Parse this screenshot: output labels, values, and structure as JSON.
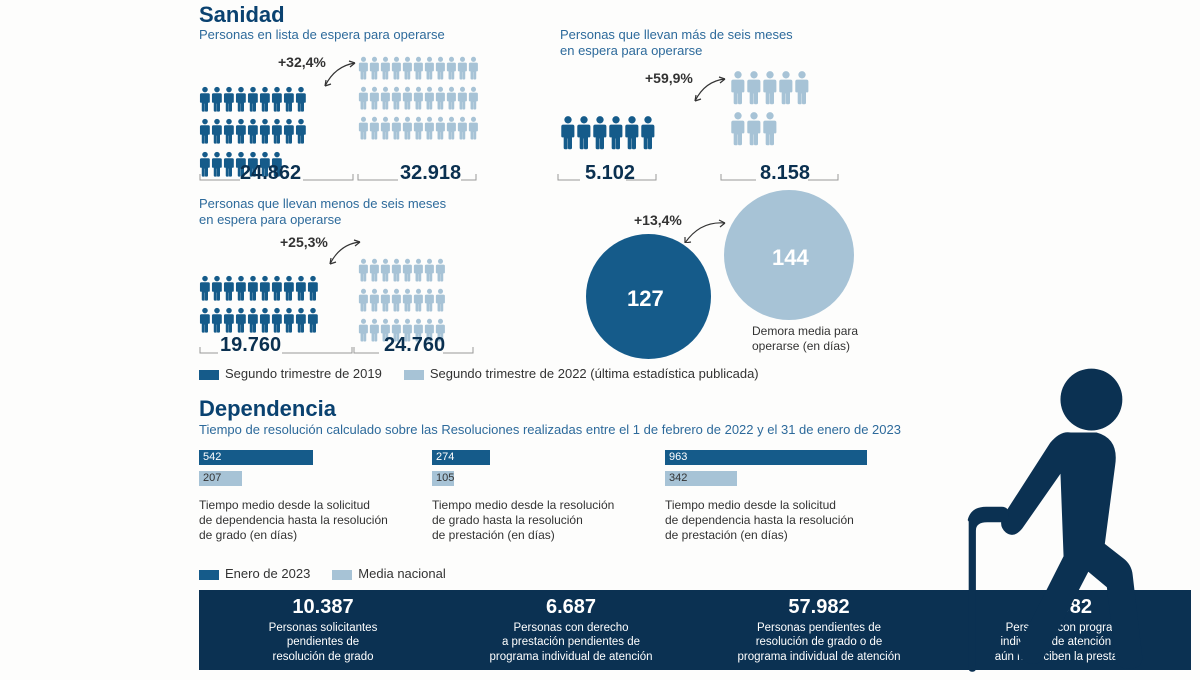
{
  "colors": {
    "dark": "#155b8a",
    "light": "#a7c3d6",
    "navy": "#0b3152",
    "title": "#0a4270",
    "text": "#333333"
  },
  "sanidad": {
    "title": "Sanidad",
    "blocks": {
      "waitlist": {
        "subtitle": "Personas en lista de espera para operarse",
        "change": "+32,4%",
        "v2019": "24.862",
        "v2022": "32.918",
        "rows2019": [
          9,
          9,
          7
        ],
        "rows2022": [
          11,
          11,
          11
        ]
      },
      "over6m": {
        "subtitle": "Personas que llevan más de seis meses\nen espera para operarse",
        "change": "+59,9%",
        "v2019": "5.102",
        "v2022": "8.158",
        "rows2019": [
          6
        ],
        "rows2022": [
          5,
          3
        ]
      },
      "under6m": {
        "subtitle": "Personas que llevan menos de seis meses\nen espera para operarse",
        "change": "+25,3%",
        "v2019": "19.760",
        "v2022": "24.760",
        "rows2019": [
          10,
          10
        ],
        "rows2022": [
          8,
          8,
          8
        ]
      }
    },
    "delay": {
      "change": "+13,4%",
      "v2019": "127",
      "v2022": "144",
      "caption": "Demora media para\noperarse (en días)"
    },
    "legend": {
      "a": "Segundo trimestre de 2019",
      "b": "Segundo trimestre de 2022 (última estadística publicada)"
    }
  },
  "dependencia": {
    "title": "Dependencia",
    "subtitle": "Tiempo de resolución calculado sobre las Resoluciones realizadas entre el 1 de febrero de 2022 y el 31 de enero de 2023",
    "maxScale": 1000,
    "metrics": [
      {
        "a": 542,
        "b": 207,
        "aLabel": "542",
        "bLabel": "207",
        "desc": "Tiempo medio desde la solicitud\nde dependencia hasta la resolución\nde grado (en días)"
      },
      {
        "a": 274,
        "b": 105,
        "aLabel": "274",
        "bLabel": "105",
        "desc": "Tiempo medio desde la resolución\nde grado hasta la resolución\nde prestación (en días)"
      },
      {
        "a": 963,
        "b": 342,
        "aLabel": "963",
        "bLabel": "342",
        "desc": "Tiempo medio desde la solicitud\nde dependencia hasta la resolución\nde prestación (en días)"
      }
    ],
    "legend": {
      "a": "Enero de 2023",
      "b": "Media nacional"
    },
    "banner": [
      {
        "num": "10.387",
        "txt": "Personas solicitantes\npendientes de\nresolución de grado"
      },
      {
        "num": "6.687",
        "txt": "Personas con derecho\na prestación pendientes de\nprograma individual de atención"
      },
      {
        "num": "57.982",
        "txt": "Personas pendientes de\nresolución de grado o de\nprograma individual de atención"
      },
      {
        "num": "7.082",
        "txt": "Personas con programa\nindividual de atención que\naún no reciben la prestación"
      }
    ]
  }
}
